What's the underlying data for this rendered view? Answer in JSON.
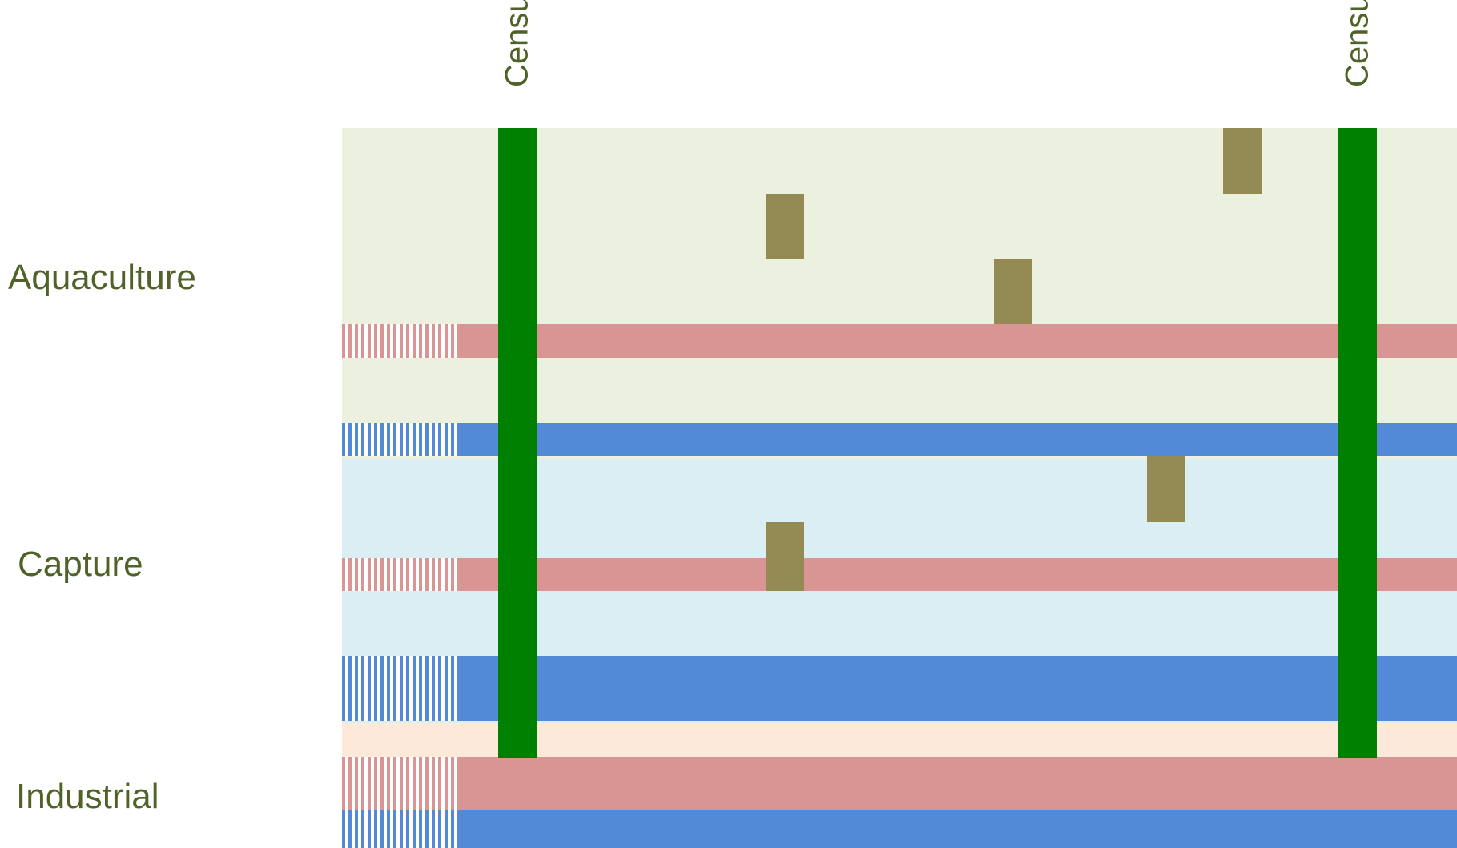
{
  "census": {
    "left_label": "Census",
    "right_label": "Census"
  },
  "rows": {
    "aquaculture": {
      "label": "Aquaculture"
    },
    "capture": {
      "label": "Capture"
    },
    "industrial": {
      "label": "Industrial"
    }
  },
  "colors": {
    "aquaculture_band": "#ebf1de",
    "capture_band": "#dbeef4",
    "industrial_band": "#fde9d9",
    "pink_bar": "#d99494",
    "blue_bar": "#538ad7",
    "census_line": "#008000",
    "event_block": "#948a54",
    "label_text": "#4f6228"
  }
}
